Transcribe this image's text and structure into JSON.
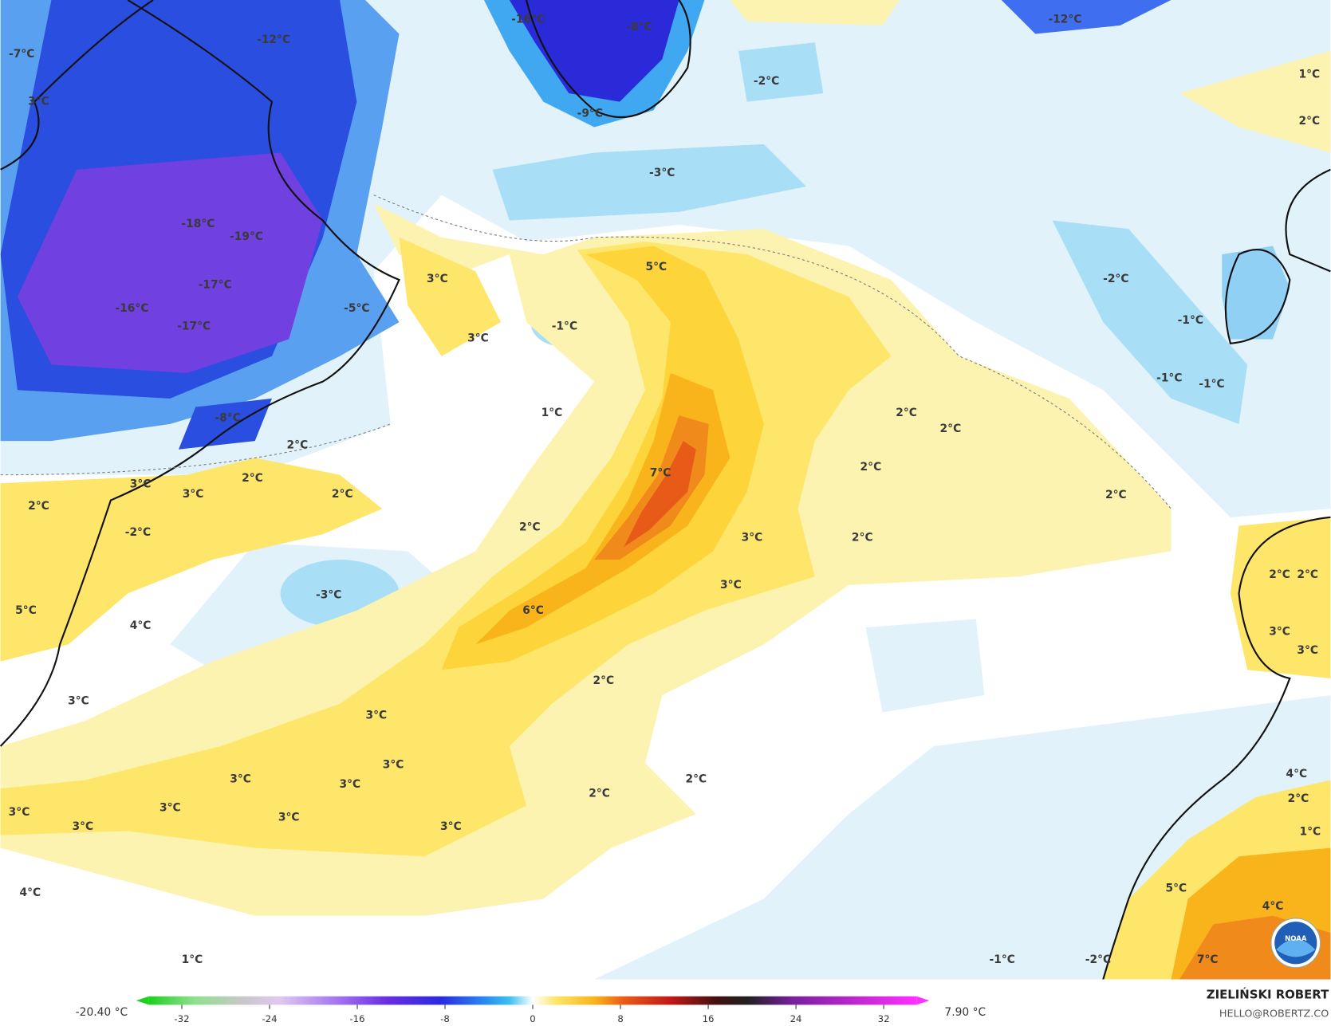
{
  "map": {
    "labels": [
      "-7°C",
      "3°C",
      "-12°C",
      "-16°C",
      "-8°C",
      "-12°C",
      "-2°C",
      "1°C",
      "2°C",
      "-9°C",
      "-3°C",
      "-18°C",
      "-19°C",
      "-17°C",
      "-16°C",
      "-17°C",
      "-5°C",
      "3°C",
      "5°C",
      "-1°C",
      "3°C",
      "-2°C",
      "-1°C",
      "-1°C",
      "-1°C",
      "1°C",
      "2°C",
      "2°C",
      "-8°C",
      "2°C",
      "7°C",
      "2°C",
      "3°C",
      "3°C",
      "2°C",
      "2°C",
      "2°C",
      "2°C",
      "2°C",
      "-2°C",
      "3°C",
      "2°C",
      "3°C",
      "-3°C",
      "5°C",
      "6°C",
      "4°C",
      "2°C",
      "3°C",
      "3°C",
      "3°C",
      "3°C",
      "3°C",
      "2°C",
      "2°C",
      "3°C",
      "3°C",
      "3°C",
      "3°C",
      "3°C",
      "4°C",
      "1°C",
      "-1°C",
      "-2°C",
      "5°C",
      "4°C",
      "7°C",
      "1°C",
      "2°C",
      "4°C",
      "3°C",
      "3°C",
      "2°C",
      "2°C"
    ],
    "logo": "NOAA"
  },
  "colorbar": {
    "range": [
      -35,
      35
    ],
    "ticks": [
      -32,
      -24,
      -16,
      -8,
      0,
      8,
      16,
      24,
      32
    ],
    "min_label": "-20.40 °C",
    "max_label": "7.90 °C"
  },
  "credit": {
    "name": "ZIELIŃSKI ROBERT",
    "contact": "HELLO@ROBERTZ.CO"
  }
}
